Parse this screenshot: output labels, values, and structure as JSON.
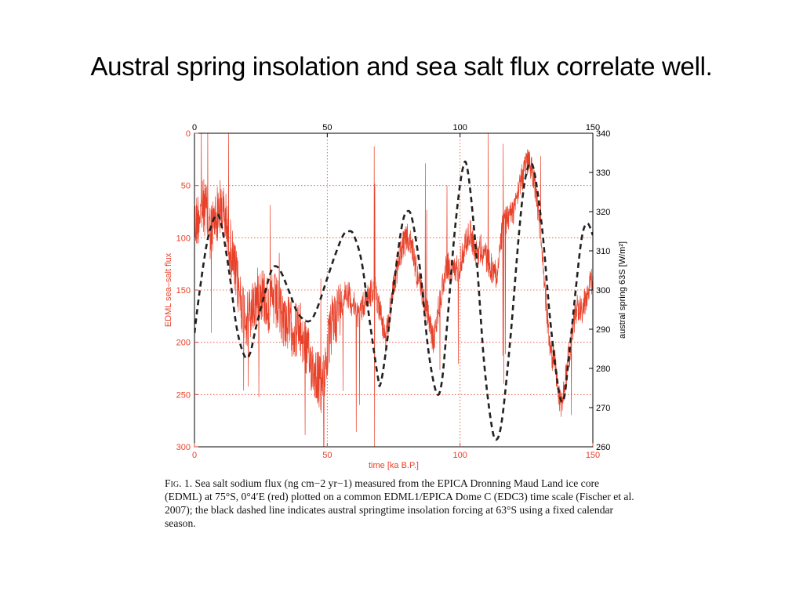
{
  "slide": {
    "title": "Austral spring insolation and sea salt flux correlate well."
  },
  "caption": {
    "prefix": "Fig. 1.",
    "text": "Sea salt sodium flux (ng cm−2 yr−1) measured from the EPICA Dronning Maud Land ice core (EDML) at 75°S, 0°4′E (red) plotted on a common EDML1/EPICA Dome C (EDC3) time scale (Fischer et al. 2007); the black dashed line indicates austral springtime insolation forcing at 63°S using a fixed calendar season."
  },
  "colors": {
    "flux": "#e8412a",
    "insolation": "#222222",
    "grid": "#e8412a",
    "axis": "#000000"
  },
  "chart_data": {
    "type": "line",
    "xlabel": "time [ka B.P.]",
    "ylabel_left": "EDML sea–salt flux",
    "ylabel_right": "austral spring 63S [W/m²]",
    "xlim": [
      0,
      150
    ],
    "ylim_left": [
      300,
      0
    ],
    "ylim_right": [
      260,
      340
    ],
    "x_ticks": [
      "0",
      "50",
      "100",
      "150"
    ],
    "x_ticks_top": [
      "0",
      "50",
      "100",
      "150"
    ],
    "y_ticks_left": [
      "0",
      "50",
      "100",
      "150",
      "200",
      "250",
      "300"
    ],
    "y_ticks_right": [
      "260",
      "270",
      "280",
      "290",
      "300",
      "310",
      "320",
      "330",
      "340"
    ],
    "grid": true,
    "series": [
      {
        "name": "EDML sea salt flux",
        "axis": "left",
        "style": "solid-red-noisy",
        "x": [
          0,
          2,
          4,
          6,
          8,
          10,
          12,
          15,
          18,
          20,
          22,
          25,
          28,
          30,
          33,
          36,
          40,
          43,
          46,
          48,
          50,
          52,
          55,
          57,
          60,
          62,
          65,
          68,
          70,
          72,
          75,
          78,
          80,
          82,
          85,
          88,
          90,
          92,
          95,
          97,
          100,
          102,
          104,
          106,
          108,
          110,
          112,
          114,
          116,
          118,
          120,
          122,
          124,
          125,
          126,
          128,
          130,
          132,
          134,
          136,
          137,
          138,
          140,
          142,
          144,
          146,
          148,
          150
        ],
        "values": [
          90,
          75,
          70,
          95,
          80,
          70,
          85,
          130,
          165,
          180,
          165,
          150,
          165,
          160,
          175,
          185,
          190,
          215,
          230,
          245,
          210,
          180,
          165,
          150,
          165,
          175,
          155,
          150,
          170,
          200,
          145,
          110,
          100,
          110,
          150,
          175,
          200,
          165,
          125,
          135,
          125,
          105,
          95,
          115,
          110,
          120,
          130,
          135,
          90,
          80,
          75,
          50,
          40,
          30,
          25,
          45,
          90,
          150,
          210,
          220,
          250,
          260,
          230,
          195,
          165,
          170,
          150,
          140
        ]
      },
      {
        "name": "austral spring insolation 63S",
        "axis": "right",
        "style": "dashed-black",
        "x": [
          0,
          2,
          5,
          8,
          10,
          13,
          16,
          19,
          21,
          23,
          26,
          29,
          31,
          33,
          36,
          39,
          43,
          46,
          50,
          53,
          56,
          58,
          60,
          63,
          66,
          69,
          70,
          72,
          75,
          78,
          80,
          82,
          85,
          88,
          91,
          93,
          95,
          98,
          101,
          103,
          106,
          109,
          112,
          114,
          116,
          119,
          122,
          124,
          126,
          128,
          131,
          134,
          137,
          139,
          141,
          144,
          146,
          148,
          150
        ],
        "values": [
          289,
          300,
          313,
          319,
          317,
          305,
          290,
          283,
          284,
          290,
          298,
          305,
          306,
          304,
          299,
          294,
          292,
          295,
          303,
          309,
          314,
          315,
          314,
          307,
          292,
          278,
          276,
          284,
          301,
          316,
          320,
          318,
          305,
          285,
          274,
          276,
          290,
          315,
          331,
          330,
          310,
          282,
          265,
          262,
          268,
          288,
          313,
          326,
          332,
          330,
          315,
          292,
          275,
          272,
          283,
          303,
          314,
          317,
          314
        ]
      }
    ]
  }
}
